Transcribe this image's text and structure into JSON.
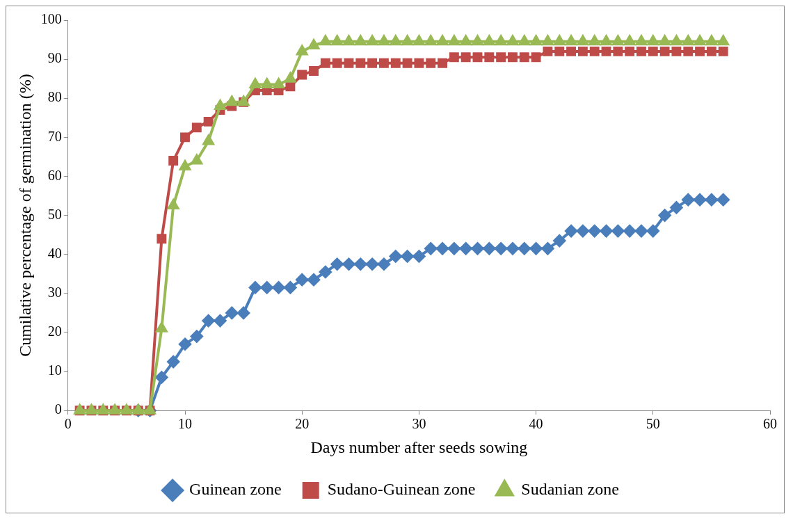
{
  "chart_data": {
    "type": "line",
    "xlabel": "Days number after seeds sowing",
    "ylabel": "Cumilative percentage of germination (%)",
    "x": [
      1,
      2,
      3,
      4,
      5,
      6,
      7,
      8,
      9,
      10,
      11,
      12,
      13,
      14,
      15,
      16,
      17,
      18,
      19,
      20,
      21,
      22,
      23,
      24,
      25,
      26,
      27,
      28,
      29,
      30,
      31,
      32,
      33,
      34,
      35,
      36,
      37,
      38,
      39,
      40,
      41,
      42,
      43,
      44,
      45,
      46,
      47,
      48,
      49,
      50,
      51,
      52,
      53,
      54,
      55,
      56
    ],
    "xlim": [
      0,
      60
    ],
    "xticks": [
      0,
      10,
      20,
      30,
      40,
      50,
      60
    ],
    "ylim": [
      0,
      100
    ],
    "yticks": [
      0,
      10,
      20,
      30,
      40,
      50,
      60,
      70,
      80,
      90,
      100
    ],
    "grid": false,
    "legend": "bottom",
    "series": [
      {
        "name": "Guinean zone",
        "color": "#4a7ebb",
        "marker": "diamond",
        "values": [
          null,
          null,
          null,
          null,
          null,
          0,
          0,
          8.5,
          12.5,
          17,
          19,
          23,
          23,
          25,
          25,
          31.5,
          31.5,
          31.5,
          31.5,
          33.5,
          33.5,
          35.5,
          37.5,
          37.5,
          37.5,
          37.5,
          37.5,
          39.5,
          39.5,
          39.5,
          41.5,
          41.5,
          41.5,
          41.5,
          41.5,
          41.5,
          41.5,
          41.5,
          41.5,
          41.5,
          41.5,
          43.5,
          46,
          46,
          46,
          46,
          46,
          46,
          46,
          46,
          50,
          52,
          54,
          54,
          54,
          54
        ]
      },
      {
        "name": "Sudano-Guinean zone",
        "color": "#be4b48",
        "marker": "square",
        "values": [
          0,
          0,
          0,
          0,
          0,
          0,
          0,
          44,
          64,
          70,
          72.5,
          74,
          77,
          78,
          79,
          82,
          82,
          82,
          83,
          86,
          87,
          89,
          89,
          89,
          89,
          89,
          89,
          89,
          89,
          89,
          89,
          89,
          90.5,
          90.5,
          90.5,
          90.5,
          90.5,
          90.5,
          90.5,
          90.5,
          92,
          92,
          92,
          92,
          92,
          92,
          92,
          92,
          92,
          92,
          92,
          92,
          92,
          92,
          92,
          92
        ]
      },
      {
        "name": "Sudanian zone",
        "color": "#98b954",
        "marker": "triangle",
        "values": [
          0,
          0,
          0,
          0,
          0,
          0,
          0,
          21,
          52.5,
          62.5,
          64,
          69,
          78,
          79,
          79,
          83.5,
          83.5,
          83.5,
          85,
          92,
          93.5,
          94.5,
          94.5,
          94.5,
          94.5,
          94.5,
          94.5,
          94.5,
          94.5,
          94.5,
          94.5,
          94.5,
          94.5,
          94.5,
          94.5,
          94.5,
          94.5,
          94.5,
          94.5,
          94.5,
          94.5,
          94.5,
          94.5,
          94.5,
          94.5,
          94.5,
          94.5,
          94.5,
          94.5,
          94.5,
          94.5,
          94.5,
          94.5,
          94.5,
          94.5,
          94.5
        ]
      }
    ]
  }
}
